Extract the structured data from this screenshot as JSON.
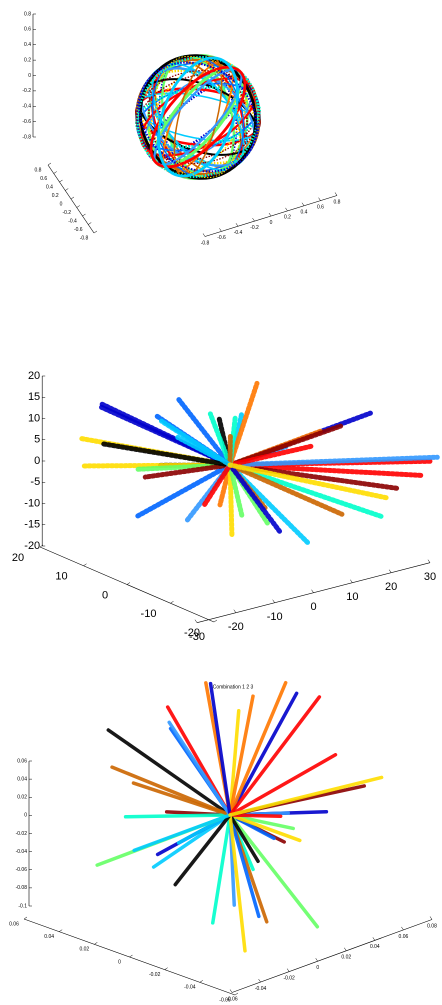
{
  "chart_data": [
    {
      "type": "scatter3d",
      "zlim": [
        -0.8,
        0.8
      ],
      "zticks": [
        0.8,
        0.6,
        0.4,
        0.2,
        0,
        -0.2,
        -0.4,
        -0.6,
        -0.8
      ],
      "ylim": [
        -0.8,
        0.8
      ],
      "yticks": [
        0.8,
        0.6,
        0.4,
        0.2,
        0,
        -0.2,
        -0.4,
        -0.6,
        -0.8
      ],
      "xlim": [
        -0.8,
        0.8
      ],
      "xticks": [
        -0.8,
        -0.6,
        -0.4,
        -0.2,
        0,
        0.2,
        0.4,
        0.6,
        0.8
      ]
    },
    {
      "type": "scatter3d",
      "zlim": [
        -20,
        20
      ],
      "zticks": [
        20,
        15,
        10,
        5,
        0,
        -5,
        -10,
        -15,
        -20
      ],
      "ylim": [
        -20,
        20
      ],
      "yticks": [
        20,
        10,
        0,
        -10,
        -20
      ],
      "xlim": [
        -30,
        30
      ],
      "xticks": [
        -30,
        -20,
        -10,
        0,
        10,
        20,
        30
      ]
    },
    {
      "type": "scatter3d",
      "title": "Combination 1  2  3",
      "zlim": [
        -0.1,
        0.06
      ],
      "zticks": [
        0.06,
        0.04,
        0.02,
        0,
        -0.02,
        -0.04,
        -0.06,
        -0.08,
        -0.1
      ],
      "ylim": [
        -0.06,
        0.06
      ],
      "yticks": [
        0.06,
        0.04,
        0.02,
        0,
        -0.02,
        -0.04,
        -0.06
      ],
      "xlim": [
        -0.06,
        0.08
      ],
      "xticks": [
        -0.06,
        -0.04,
        -0.02,
        0,
        0.02,
        0.04,
        0.06,
        0.08
      ]
    }
  ]
}
